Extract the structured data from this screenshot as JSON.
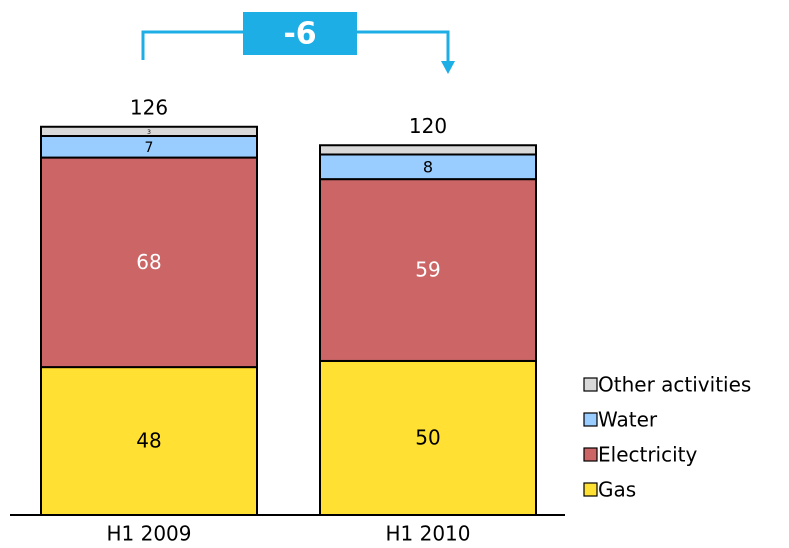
{
  "chart_data": {
    "type": "stacked_bar",
    "categories": [
      "H1 2009",
      "H1 2010"
    ],
    "series": [
      {
        "name": "Gas",
        "color": "#ffe033",
        "label_color": "#000000",
        "values": [
          48,
          50
        ]
      },
      {
        "name": "Electricity",
        "color": "#cc6666",
        "label_color": "#ffffff",
        "values": [
          68,
          59
        ]
      },
      {
        "name": "Water",
        "color": "#99ccff",
        "label_color": "#000000",
        "values": [
          7,
          8
        ]
      },
      {
        "name": "Other activities",
        "color": "#d9d9d9",
        "label_color": "#000000",
        "values": [
          3,
          3
        ],
        "value_labels": [
          "3",
          null
        ]
      }
    ],
    "totals": [
      126,
      120
    ],
    "annotation": "-6",
    "annotation_color": "#1eaee6",
    "ylim": [
      0,
      160
    ]
  }
}
